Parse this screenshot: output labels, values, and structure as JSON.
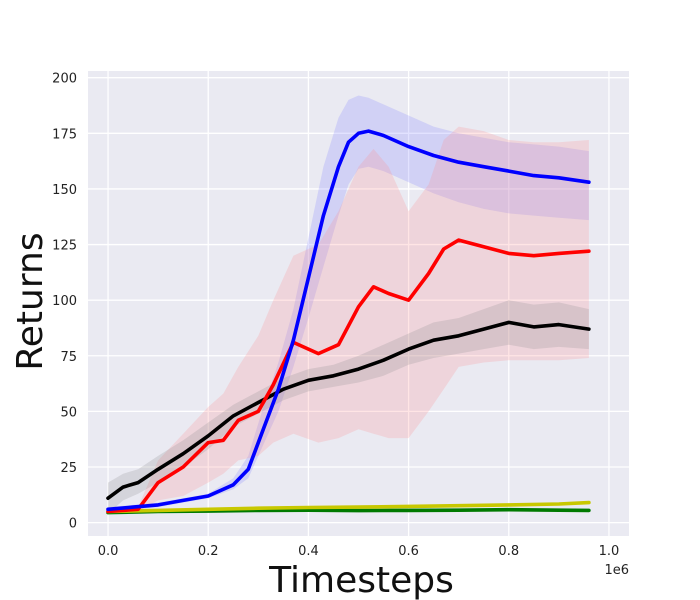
{
  "chart_data": {
    "type": "line",
    "xlabel": "Timesteps",
    "ylabel": "Returns",
    "x_offset_label": "1e6",
    "xlim": [
      -0.04,
      1.04
    ],
    "ylim": [
      -6,
      203
    ],
    "xticks": [
      0.0,
      0.2,
      0.4,
      0.6,
      0.8,
      1.0
    ],
    "xtick_labels": [
      "0.0",
      "0.2",
      "0.4",
      "0.6",
      "0.8",
      "1.0"
    ],
    "yticks": [
      0,
      25,
      50,
      75,
      100,
      125,
      150,
      175,
      200
    ],
    "ytick_labels": [
      "0",
      "25",
      "50",
      "75",
      "100",
      "125",
      "150",
      "175",
      "200"
    ],
    "grid": true,
    "style": {
      "plot_background": "#eaeaf2",
      "grid_color": "#ffffff"
    },
    "series": [
      {
        "color": "#0000ff",
        "band_color": "#7b7bff",
        "x": [
          0.0,
          0.05,
          0.1,
          0.15,
          0.2,
          0.25,
          0.28,
          0.31,
          0.34,
          0.37,
          0.4,
          0.43,
          0.46,
          0.48,
          0.5,
          0.52,
          0.55,
          0.6,
          0.65,
          0.7,
          0.75,
          0.8,
          0.85,
          0.9,
          0.96
        ],
        "y": [
          6,
          7,
          8,
          10,
          12,
          17,
          24,
          42,
          60,
          82,
          110,
          138,
          160,
          171,
          175,
          176,
          174,
          169,
          165,
          162,
          160,
          158,
          156,
          155,
          153
        ],
        "lower": [
          5,
          6,
          7,
          9,
          11,
          15,
          20,
          35,
          50,
          70,
          92,
          115,
          138,
          152,
          159,
          160,
          158,
          153,
          148,
          144,
          141,
          139,
          138,
          137,
          136
        ],
        "upper": [
          7,
          8,
          9,
          11,
          13,
          20,
          30,
          52,
          72,
          96,
          128,
          160,
          182,
          190,
          192,
          191,
          188,
          183,
          178,
          175,
          173,
          171,
          170,
          169,
          167
        ]
      },
      {
        "color": "#ff0000",
        "band_color": "#ff8a8a",
        "x": [
          0.0,
          0.06,
          0.1,
          0.15,
          0.2,
          0.23,
          0.26,
          0.3,
          0.33,
          0.37,
          0.42,
          0.46,
          0.5,
          0.53,
          0.56,
          0.6,
          0.64,
          0.67,
          0.7,
          0.75,
          0.8,
          0.85,
          0.9,
          0.96
        ],
        "y": [
          5,
          6,
          18,
          25,
          36,
          37,
          46,
          50,
          62,
          81,
          76,
          80,
          97,
          106,
          103,
          100,
          112,
          123,
          127,
          124,
          121,
          120,
          121,
          122
        ],
        "lower": [
          4,
          5,
          10,
          12,
          18,
          22,
          28,
          30,
          36,
          40,
          36,
          38,
          42,
          40,
          38,
          38,
          50,
          60,
          70,
          72,
          73,
          73,
          73,
          74
        ],
        "upper": [
          6,
          7,
          28,
          40,
          52,
          58,
          70,
          84,
          100,
          120,
          125,
          140,
          160,
          168,
          160,
          140,
          152,
          172,
          178,
          176,
          172,
          171,
          171,
          172
        ]
      },
      {
        "color": "#000000",
        "band_color": "#888888",
        "x": [
          0.0,
          0.03,
          0.06,
          0.1,
          0.15,
          0.2,
          0.25,
          0.3,
          0.35,
          0.4,
          0.45,
          0.5,
          0.55,
          0.6,
          0.65,
          0.7,
          0.75,
          0.8,
          0.85,
          0.9,
          0.96
        ],
        "y": [
          11,
          16,
          18,
          24,
          31,
          39,
          48,
          54,
          60,
          64,
          66,
          69,
          73,
          78,
          82,
          84,
          87,
          90,
          88,
          89,
          87
        ],
        "lower": [
          4,
          10,
          13,
          18,
          25,
          33,
          43,
          49,
          55,
          59,
          61,
          63,
          66,
          71,
          74,
          76,
          78,
          80,
          78,
          79,
          78
        ],
        "upper": [
          18,
          22,
          24,
          30,
          37,
          45,
          53,
          59,
          65,
          69,
          71,
          75,
          80,
          85,
          90,
          92,
          96,
          100,
          98,
          99,
          96
        ]
      },
      {
        "color": "#c8c800",
        "x": [
          0.0,
          0.1,
          0.2,
          0.3,
          0.4,
          0.5,
          0.6,
          0.7,
          0.8,
          0.9,
          0.96
        ],
        "y": [
          5,
          5.5,
          6,
          6.5,
          6.8,
          7,
          7.3,
          7.6,
          8,
          8.4,
          9
        ]
      },
      {
        "color": "#007a00",
        "x": [
          0.0,
          0.1,
          0.2,
          0.3,
          0.4,
          0.5,
          0.6,
          0.7,
          0.8,
          0.9,
          0.96
        ],
        "y": [
          4.5,
          5,
          5.2,
          5.5,
          5.6,
          5.4,
          5.5,
          5.6,
          5.8,
          5.6,
          5.5
        ]
      }
    ]
  }
}
